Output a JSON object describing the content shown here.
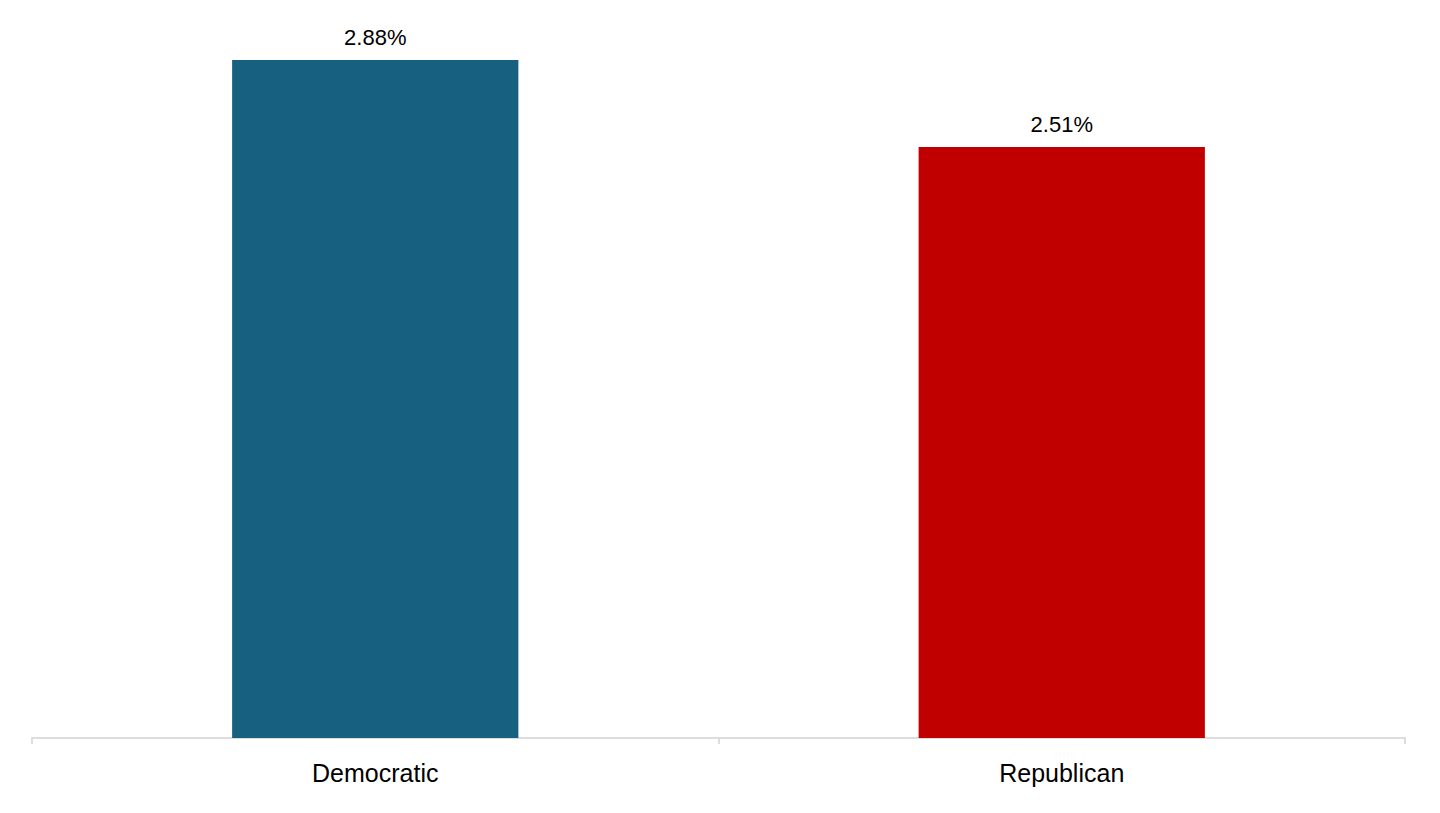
{
  "chart_data": {
    "type": "bar",
    "categories": [
      "Democratic",
      "Republican"
    ],
    "values": [
      2.88,
      2.51
    ],
    "value_labels": [
      "2.88%",
      "2.51%"
    ],
    "colors": [
      "#17607f",
      "#c00000"
    ],
    "ylim": [
      0,
      2.88
    ],
    "grid": false,
    "data_labels": true,
    "tick_labels": "x"
  }
}
